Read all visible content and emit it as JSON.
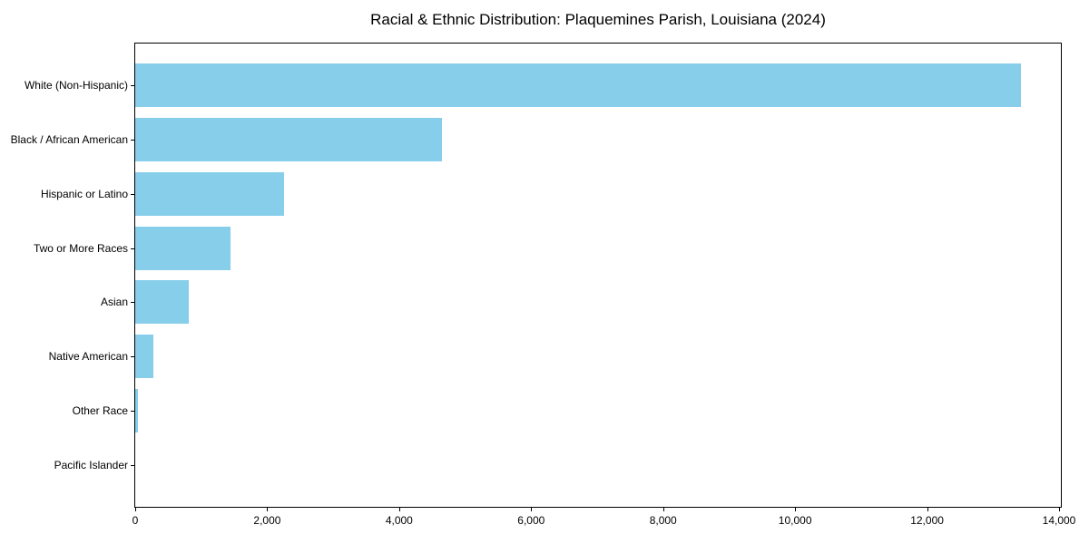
{
  "title": "Racial & Ethnic Distribution: Plaquemines Parish, Louisiana (2024)",
  "chart_data": {
    "type": "bar",
    "orientation": "horizontal",
    "title": "Racial & Ethnic Distribution: Plaquemines Parish, Louisiana (2024)",
    "categories": [
      "White (Non-Hispanic)",
      "Black / African American",
      "Hispanic or Latino",
      "Two or More Races",
      "Asian",
      "Native American",
      "Other Race",
      "Pacific Islander"
    ],
    "values": [
      13425,
      4650,
      2250,
      1440,
      810,
      275,
      35,
      0
    ],
    "xlabel": "",
    "ylabel": "",
    "xlim": [
      0,
      14000
    ],
    "x_ticks": [
      0,
      2000,
      4000,
      6000,
      8000,
      10000,
      12000,
      14000
    ],
    "x_tick_labels": [
      "0",
      "2,000",
      "4,000",
      "6,000",
      "8,000",
      "10,000",
      "12,000",
      "14,000"
    ],
    "bar_color": "#87CEEB",
    "grid": false,
    "legend": null
  }
}
